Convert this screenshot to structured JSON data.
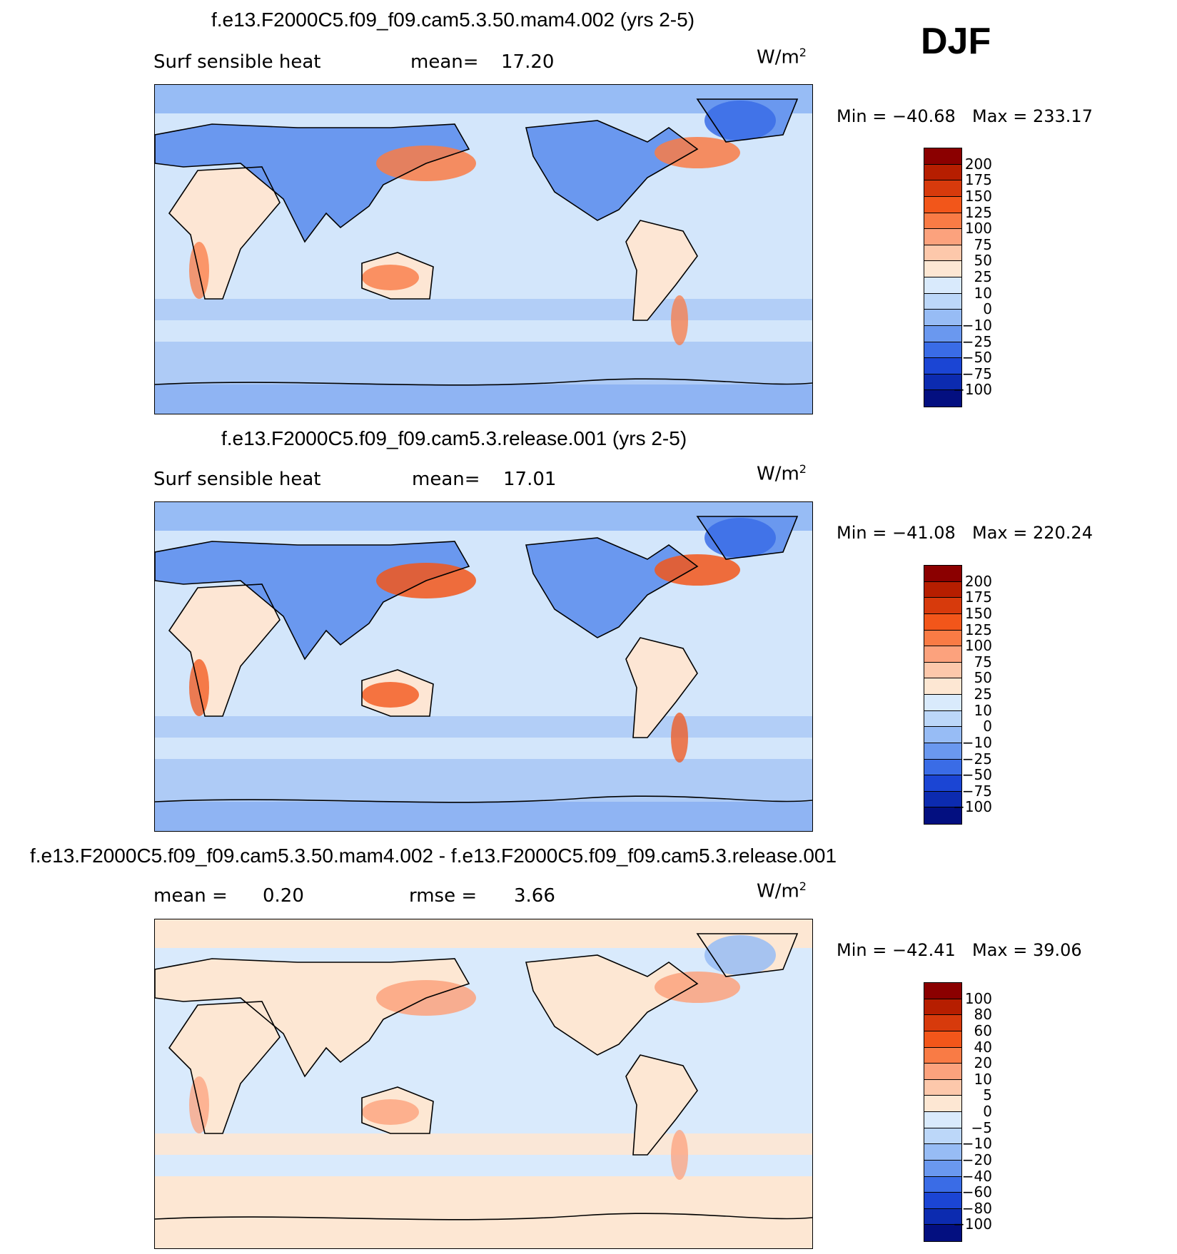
{
  "season": "DJF",
  "units_base": "W/m",
  "units_exp": "2",
  "colors": {
    "ocean_light": "#d3e6fb",
    "ocean_mid": "#aecbf6",
    "land_warm": "#fde6d4",
    "coast": "#000000"
  },
  "chart_data": [
    {
      "type": "heatmap",
      "title": "f.e13.F2000C5.f09_f09.cam5.3.50.mam4.002 (yrs 2-5)",
      "variable": "Surf sensible heat",
      "mean_label": "mean=",
      "mean_value": "17.20",
      "min_text": "Min = −40.68",
      "max_text": "Max = 233.17",
      "colorbar": {
        "levels": [
          "200",
          "175",
          "150",
          "125",
          "100",
          "75",
          "50",
          "25",
          "10",
          "0",
          "−10",
          "−25",
          "−50",
          "−75",
          "−100"
        ],
        "colors": [
          "#8b0000",
          "#b61e00",
          "#d73a0c",
          "#f2561a",
          "#f97b45",
          "#fca27d",
          "#fdc8ab",
          "#fde7d3",
          "#d9eafc",
          "#bcd7f9",
          "#97bcf5",
          "#6a98ef",
          "#3a6ce6",
          "#1b45d4",
          "#0c2bb0",
          "#030f80"
        ]
      }
    },
    {
      "type": "heatmap",
      "title": "f.e13.F2000C5.f09_f09.cam5.3.release.001 (yrs 2-5)",
      "variable": "Surf sensible heat",
      "mean_label": "mean=",
      "mean_value": "17.01",
      "min_text": "Min = −41.08",
      "max_text": "Max = 220.24",
      "colorbar": {
        "levels": [
          "200",
          "175",
          "150",
          "125",
          "100",
          "75",
          "50",
          "25",
          "10",
          "0",
          "−10",
          "−25",
          "−50",
          "−75",
          "−100"
        ],
        "colors": [
          "#8b0000",
          "#b61e00",
          "#d73a0c",
          "#f2561a",
          "#f97b45",
          "#fca27d",
          "#fdc8ab",
          "#fde7d3",
          "#d9eafc",
          "#bcd7f9",
          "#97bcf5",
          "#6a98ef",
          "#3a6ce6",
          "#1b45d4",
          "#0c2bb0",
          "#030f80"
        ]
      }
    },
    {
      "type": "heatmap",
      "title": "f.e13.F2000C5.f09_f09.cam5.3.50.mam4.002 - f.e13.F2000C5.f09_f09.cam5.3.release.001",
      "mean_label": "mean =",
      "mean_value": "0.20",
      "rmse_label": "rmse =",
      "rmse_value": "3.66",
      "min_text": "Min = −42.41",
      "max_text": "Max =   39.06",
      "colorbar": {
        "levels": [
          "100",
          "80",
          "60",
          "40",
          "20",
          "10",
          "5",
          "0",
          "−5",
          "−10",
          "−20",
          "−40",
          "−60",
          "−80",
          "−100"
        ],
        "colors": [
          "#8b0000",
          "#b61e00",
          "#d73a0c",
          "#f2561a",
          "#f97b45",
          "#fca27d",
          "#fdc8ab",
          "#fde7d3",
          "#d9eafc",
          "#bcd7f9",
          "#97bcf5",
          "#6a98ef",
          "#3a6ce6",
          "#1b45d4",
          "#0c2bb0",
          "#030f80"
        ]
      }
    }
  ]
}
